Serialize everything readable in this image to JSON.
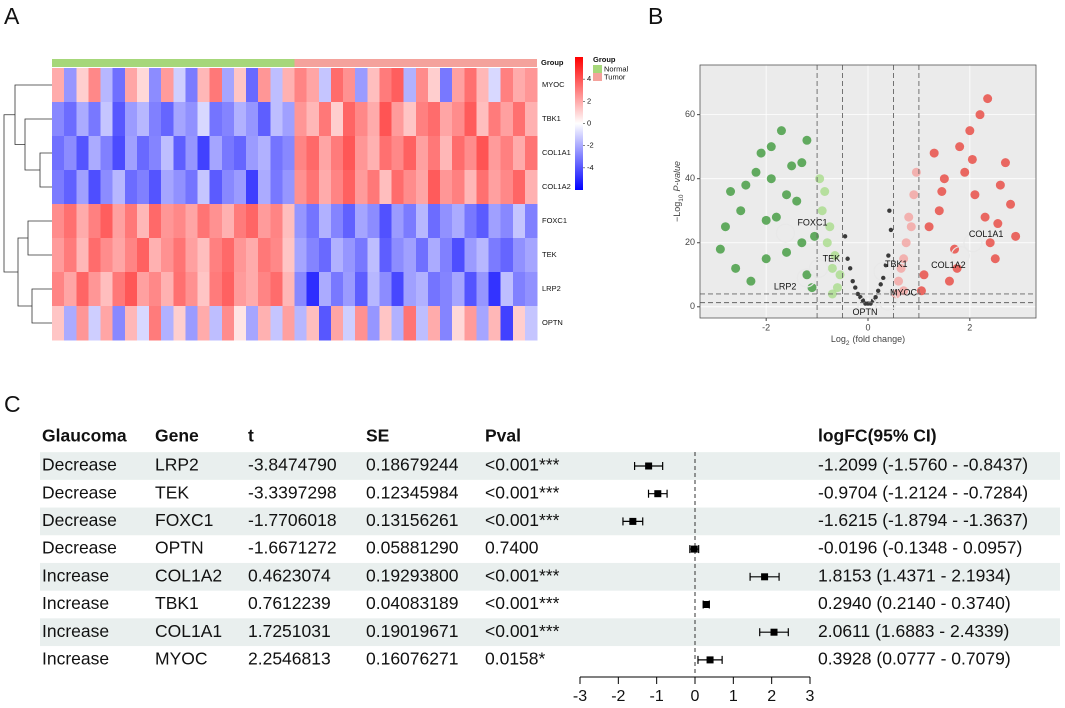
{
  "chart_data": [
    {
      "type": "heatmap",
      "panel": "A",
      "group_label": "Group",
      "rows": [
        "MYOC",
        "TBK1",
        "COL1A1",
        "COL1A2",
        "FOXC1",
        "TEK",
        "LRP2",
        "OPTN"
      ],
      "groups": [
        {
          "name": "Normal",
          "color": "#a6d77a",
          "count": 20
        },
        {
          "name": "Tumor",
          "color": "#f4a29c",
          "count": 20
        }
      ],
      "clim": [
        -6,
        6
      ],
      "colorbar_ticks": [
        4,
        2,
        0,
        -2,
        -4
      ],
      "values": [
        [
          0.8,
          -1.2,
          0.3,
          1.5,
          -0.6,
          -2.1,
          0.9,
          0.2,
          -1.4,
          1.1,
          -0.3,
          -1.8,
          0.6,
          1.9,
          -0.9,
          0.4,
          -2.3,
          1.2,
          -0.5,
          0.7,
          1.6,
          0.9,
          -0.4,
          2.2,
          1.3,
          -1.1,
          0.5,
          1.8,
          2.6,
          -0.7,
          1.4,
          0.3,
          -1.9,
          1.0,
          2.1,
          0.6,
          -0.2,
          1.7,
          0.8,
          1.2
        ],
        [
          -1.5,
          -2.2,
          -0.8,
          -1.9,
          -0.4,
          -2.8,
          -1.1,
          -0.6,
          -1.7,
          -2.4,
          -0.9,
          -1.3,
          -0.2,
          -2.0,
          -1.6,
          -0.7,
          -1.2,
          -2.6,
          -0.5,
          -1.0,
          1.2,
          0.6,
          1.9,
          0.3,
          2.4,
          1.5,
          0.8,
          2.9,
          1.1,
          0.4,
          1.7,
          2.2,
          0.9,
          1.4,
          2.7,
          0.5,
          1.8,
          1.0,
          2.1,
          0.7
        ],
        [
          -2.1,
          -1.4,
          -2.9,
          -0.8,
          -1.7,
          -3.2,
          -1.0,
          -2.3,
          -1.6,
          -0.5,
          -2.6,
          -1.2,
          -3.5,
          -0.9,
          -1.9,
          -2.4,
          -1.1,
          -0.7,
          -2.0,
          -1.5,
          1.6,
          2.3,
          0.9,
          1.8,
          2.8,
          1.2,
          0.7,
          2.1,
          1.5,
          2.5,
          1.0,
          1.9,
          0.6,
          2.2,
          1.4,
          2.9,
          1.1,
          1.7,
          0.8,
          2.0
        ],
        [
          -1.8,
          -2.5,
          -1.0,
          -3.1,
          -1.4,
          -0.6,
          -2.2,
          -1.7,
          -2.9,
          -0.9,
          -1.3,
          -2.0,
          -0.4,
          -2.7,
          -1.5,
          -1.1,
          -3.6,
          -0.8,
          -1.9,
          -1.2,
          1.3,
          2.0,
          0.8,
          1.6,
          2.5,
          1.1,
          1.9,
          0.5,
          2.2,
          1.4,
          0.9,
          2.7,
          1.2,
          1.7,
          0.6,
          2.1,
          1.0,
          1.5,
          2.4,
          0.7
        ],
        [
          1.4,
          2.1,
          0.8,
          1.7,
          2.6,
          1.0,
          1.9,
          0.6,
          2.3,
          1.2,
          1.5,
          0.9,
          2.0,
          1.3,
          0.7,
          1.8,
          2.4,
          1.1,
          1.6,
          0.5,
          -1.2,
          -2.0,
          -0.7,
          -1.6,
          -2.5,
          -0.9,
          -1.4,
          -3.0,
          -1.1,
          -1.8,
          -0.6,
          -2.2,
          -1.3,
          -0.8,
          -1.9,
          -2.7,
          -1.0,
          -1.5,
          -0.4,
          -1.7
        ],
        [
          1.1,
          1.8,
          0.6,
          2.2,
          1.4,
          0.9,
          1.6,
          2.5,
          0.7,
          1.3,
          2.0,
          1.0,
          0.5,
          1.7,
          2.3,
          1.2,
          0.8,
          1.9,
          1.5,
          0.4,
          -0.9,
          -1.6,
          -2.3,
          -0.7,
          -1.2,
          -1.9,
          -0.5,
          -2.6,
          -1.4,
          -1.0,
          -2.1,
          -0.8,
          -1.7,
          -3.1,
          -1.1,
          -0.6,
          -1.8,
          -2.4,
          -1.3,
          -0.9
        ],
        [
          1.6,
          0.9,
          2.4,
          1.2,
          0.5,
          1.9,
          2.8,
          1.0,
          1.5,
          0.7,
          2.1,
          1.3,
          0.4,
          1.8,
          2.5,
          1.1,
          0.8,
          1.6,
          2.2,
          0.6,
          -1.5,
          -4.2,
          -0.8,
          -1.9,
          -1.1,
          -2.6,
          -0.6,
          -1.4,
          -3.3,
          -1.0,
          -0.7,
          -2.0,
          -1.6,
          -0.9,
          -2.9,
          -1.2,
          -4.0,
          -0.5,
          -1.7,
          -1.3
        ],
        [
          0.4,
          -0.8,
          1.2,
          -0.3,
          0.9,
          -1.5,
          0.6,
          -0.2,
          1.8,
          -0.7,
          0.3,
          -1.1,
          0.8,
          -0.5,
          1.4,
          0.1,
          -0.9,
          0.7,
          -0.4,
          1.0,
          -0.6,
          0.5,
          -2.8,
          0.9,
          -0.3,
          1.3,
          -1.2,
          0.4,
          -0.7,
          2.0,
          -0.5,
          0.8,
          -1.6,
          0.2,
          1.1,
          -0.9,
          0.6,
          -3.5,
          0.3,
          -0.4
        ]
      ]
    },
    {
      "type": "volcano",
      "panel": "B",
      "xlabel": [
        "Log",
        "2",
        "(fold change)"
      ],
      "ylabel": [
        "−Log",
        "10",
        "P-value"
      ],
      "xlim": [
        -3.3,
        3.3
      ],
      "ylim": [
        -3.5,
        75.5
      ],
      "xticks": [
        -2,
        0,
        2
      ],
      "yticks": [
        0,
        20,
        40,
        60
      ],
      "grid": true,
      "vlines": [
        -1,
        -0.5,
        0.5,
        1
      ],
      "hlines": [
        1.3,
        4
      ],
      "series": [
        {
          "color": "#3e9a3c",
          "x": [
            -2.5,
            -2.2,
            -1.9,
            -1.6,
            -1.3,
            -2.8,
            -2.0,
            -1.5,
            -1.2,
            -2.4,
            -1.8,
            -1.1,
            -2.9,
            -2.1,
            -1.4,
            -2.6,
            -1.7,
            -1.05,
            -2.3,
            -1.9,
            -1.3,
            -2.7,
            -1.6,
            -2.0,
            -1.2
          ],
          "y": [
            30,
            42,
            50,
            35,
            20,
            25,
            15,
            44,
            10,
            38,
            28,
            6,
            18,
            48,
            33,
            12,
            55,
            22,
            8,
            40,
            45,
            36,
            17,
            27,
            52
          ]
        },
        {
          "color": "#a9dc8b",
          "x": [
            -0.9,
            -0.8,
            -0.7,
            -0.6,
            -0.95,
            -0.75,
            -0.55,
            -0.85,
            -0.65,
            -0.7
          ],
          "y": [
            30,
            20,
            12,
            6,
            40,
            25,
            10,
            36,
            16,
            4
          ]
        },
        {
          "color": "#3a3a3a",
          "x": [
            -0.4,
            -0.3,
            -0.2,
            -0.1,
            0,
            0.1,
            0.2,
            0.3,
            0.4,
            -0.45,
            -0.35,
            0.45,
            0.35,
            -0.25,
            0.25,
            -0.15,
            0.15,
            0.05,
            -0.05,
            0.42
          ],
          "y": [
            15,
            8,
            4,
            2,
            1,
            2,
            5,
            9,
            16,
            22,
            12,
            24,
            13,
            6,
            7,
            3,
            3,
            1,
            1,
            30
          ]
        },
        {
          "color": "#f4a3a0",
          "x": [
            0.6,
            0.7,
            0.8,
            0.9,
            0.55,
            0.75,
            0.95,
            0.65,
            0.85,
            0.7
          ],
          "y": [
            8,
            15,
            28,
            35,
            4,
            20,
            42,
            12,
            25,
            5
          ]
        },
        {
          "color": "#e8463f",
          "x": [
            1.2,
            1.5,
            1.8,
            2.1,
            2.4,
            2.7,
            1.1,
            1.4,
            1.7,
            2.0,
            2.3,
            2.6,
            2.9,
            1.3,
            1.6,
            1.9,
            2.2,
            2.5,
            2.8,
            1.05,
            1.45,
            2.05,
            2.35,
            1.75,
            2.55
          ],
          "y": [
            25,
            40,
            50,
            35,
            20,
            45,
            10,
            30,
            18,
            55,
            28,
            38,
            22,
            48,
            8,
            42,
            60,
            15,
            32,
            5,
            36,
            46,
            65,
            12,
            26
          ]
        }
      ],
      "genes": [
        {
          "name": "FOXC1",
          "x": -1.6215,
          "y": 23,
          "color": "#2d6a22"
        },
        {
          "name": "TEK",
          "x": -0.9704,
          "y": 12,
          "color": "#2d6a22"
        },
        {
          "name": "LRP2",
          "x": -1.2099,
          "y": 9,
          "color": "#2d6a22"
        },
        {
          "name": "OPTN",
          "x": -0.0196,
          "y": 0.3,
          "color": "#2d6a22"
        },
        {
          "name": "MYOC",
          "x": 0.3928,
          "y": 1.8,
          "color": "#8a3a12"
        },
        {
          "name": "TBK1",
          "x": 0.294,
          "y": 11,
          "color": "#8a3a12"
        },
        {
          "name": "COL1A2",
          "x": 1.8153,
          "y": 16,
          "color": "#8a3a12"
        },
        {
          "name": "COL1A1",
          "x": 2.0611,
          "y": 20,
          "color": "#8a3a12"
        }
      ]
    },
    {
      "type": "forest",
      "panel": "C",
      "columns": [
        "Glaucoma",
        "Gene",
        "t",
        "SE",
        "Pval",
        "logFC(95% CI)"
      ],
      "rows": [
        [
          "Decrease",
          "LRP2",
          "-3.8474790",
          "0.18679244",
          "<0.001***",
          "-1.2099 (-1.5760 - -0.8437)"
        ],
        [
          "Decrease",
          "TEK",
          "-3.3397298",
          "0.12345984",
          "<0.001***",
          "-0.9704 (-1.2124 - -0.7284)"
        ],
        [
          "Decrease",
          "FOXC1",
          "-1.7706018",
          "0.13156261",
          "<0.001***",
          "-1.6215 (-1.8794 - -1.3637)"
        ],
        [
          "Decrease",
          "OPTN",
          "-1.6671272",
          "0.05881290",
          "0.7400",
          "-0.0196 (-0.1348 - 0.0957)"
        ],
        [
          "Increase",
          "COL1A2",
          "0.4623074",
          "0.19293800",
          "<0.001***",
          "1.8153 (1.4371 - 2.1934)"
        ],
        [
          "Increase",
          "TBK1",
          "0.7612239",
          "0.04083189",
          "<0.001***",
          "0.2940 (0.2140 - 0.3740)"
        ],
        [
          "Increase",
          "COL1A1",
          "1.7251031",
          "0.19019671",
          "<0.001***",
          "2.0611 (1.6883 - 2.4339)"
        ],
        [
          "Increase",
          "MYOC",
          "2.2546813",
          "0.16076271",
          "0.0158*",
          "0.3928 (0.0777 - 0.7079)"
        ]
      ],
      "estimates": [
        -1.2099,
        -0.9704,
        -1.6215,
        -0.0196,
        1.8153,
        0.294,
        2.0611,
        0.3928
      ],
      "lower": [
        -1.576,
        -1.2124,
        -1.8794,
        -0.1348,
        1.4371,
        0.214,
        1.6883,
        0.0777
      ],
      "upper": [
        -0.8437,
        -0.7284,
        -1.3637,
        0.0957,
        2.1934,
        0.374,
        2.4339,
        0.7079
      ],
      "xlim": [
        -3,
        3
      ],
      "xticks": [
        -3,
        -2,
        -1,
        0,
        1,
        2,
        3
      ]
    }
  ]
}
